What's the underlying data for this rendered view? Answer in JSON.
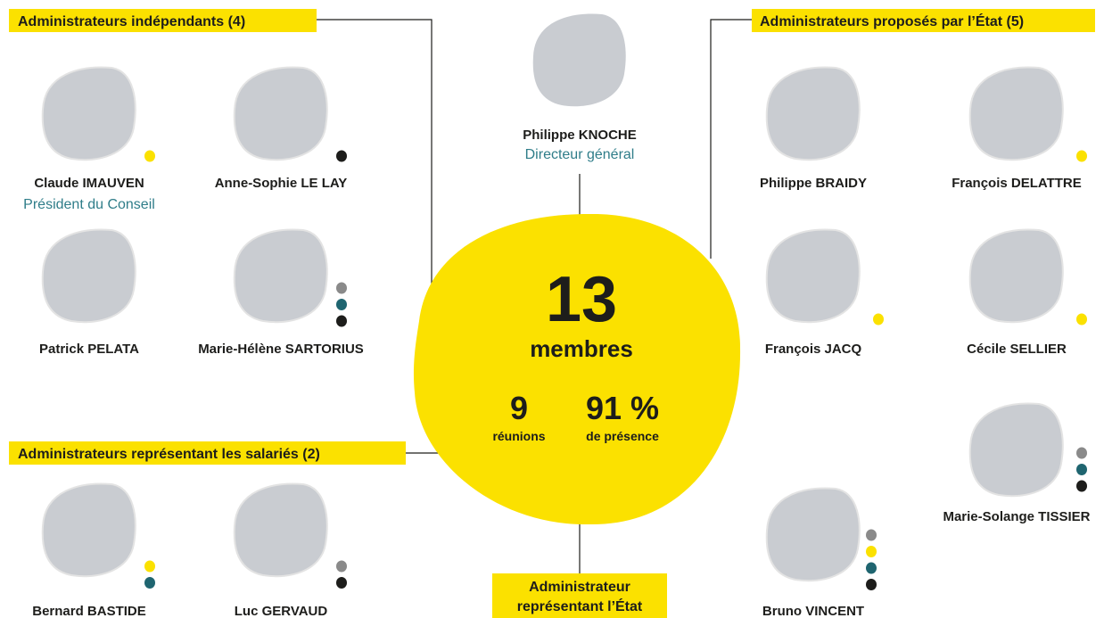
{
  "groups": {
    "independent": "Administrateurs indépendants (4)",
    "state": "Administrateurs proposés par l’État (5)",
    "employees": "Administrateurs représentant les salariés (2)",
    "state_rep": [
      "Administrateur",
      "représentant l’État"
    ]
  },
  "ceo": {
    "name": "Philippe KNOCHE",
    "role": "Directeur général"
  },
  "center": {
    "members_count": 13,
    "members_label": "membres",
    "meetings_count": 9,
    "meetings_label": "réunions",
    "attendance": "91 %",
    "attendance_label": "de présence"
  },
  "people": [
    {
      "name": "Claude IMAUVEN",
      "role": "Président du Conseil"
    },
    {
      "name": "Anne-Sophie LE LAY"
    },
    {
      "name": "Patrick PELATA"
    },
    {
      "name": "Marie-Hélène SARTORIUS"
    },
    {
      "name": "Bernard BASTIDE"
    },
    {
      "name": "Luc GERVAUD"
    },
    {
      "name": "Philippe BRAIDY"
    },
    {
      "name": "François DELATTRE"
    },
    {
      "name": "François JACQ"
    },
    {
      "name": "Cécile SELLIER"
    },
    {
      "name": "Marie-Solange TISSIER"
    },
    {
      "name": "Bruno VINCENT"
    }
  ]
}
